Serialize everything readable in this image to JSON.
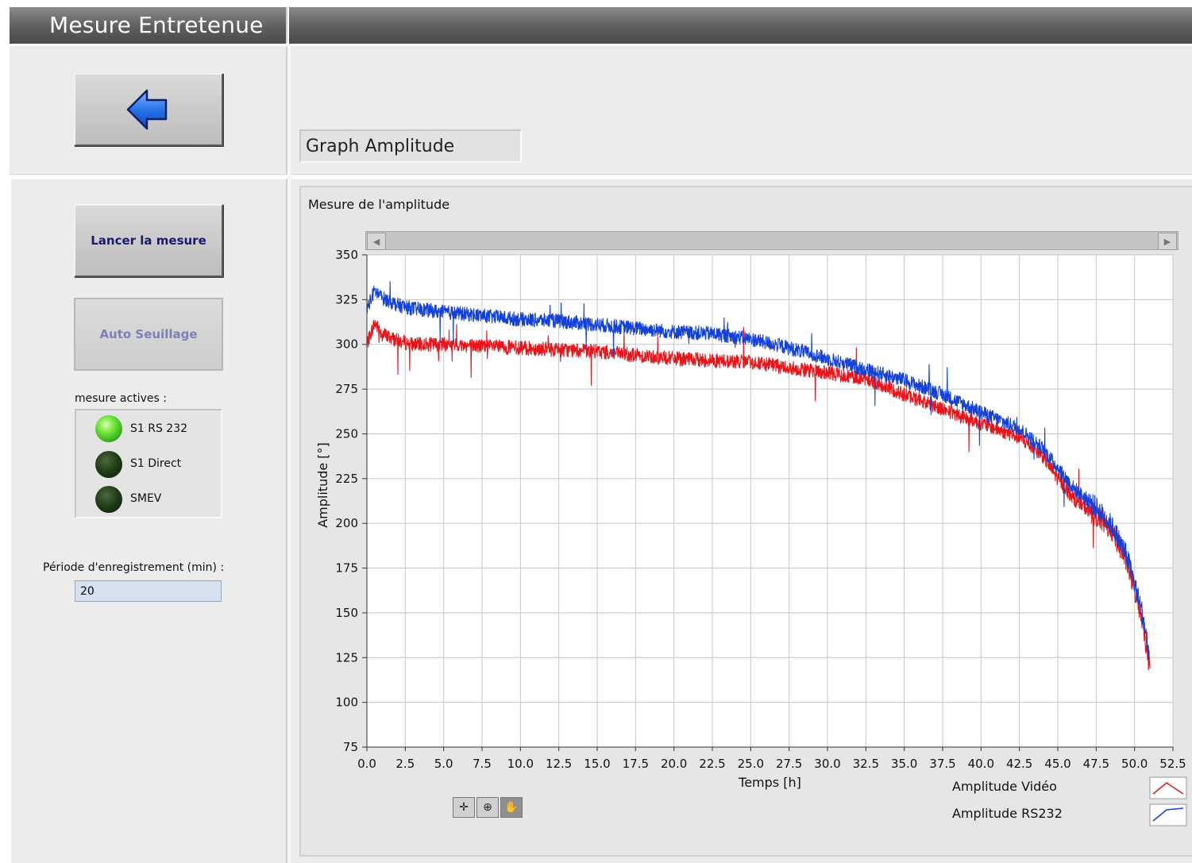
{
  "window": {
    "title": "Mesure Entretenue"
  },
  "toolbar": {
    "back_icon": "arrow-left-icon"
  },
  "buttons": {
    "launch": "Lancer la mesure",
    "auto_threshold": "Auto Seuillage"
  },
  "indicators": {
    "heading": "mesure actives :",
    "items": [
      {
        "label": "S1 RS 232",
        "state": "on"
      },
      {
        "label": "S1 Direct",
        "state": "off"
      },
      {
        "label": "SMEV",
        "state": "off"
      }
    ]
  },
  "period": {
    "label": "Période d'enregistrement (min) :",
    "value": "20"
  },
  "graph_selector": {
    "value": "Graph Amplitude"
  },
  "graph_tools": [
    "crosshair-icon",
    "zoom-icon",
    "pan-hand-icon"
  ],
  "colors": {
    "series_video": "#e8141a",
    "series_rs232": "#1240d8",
    "titlebar": "#5e5e5e"
  },
  "chart_data": {
    "type": "line",
    "title": "Mesure de l'amplitude",
    "xlabel": "Temps [h]",
    "ylabel": "Amplitude [°]",
    "xlim": [
      0,
      52.5
    ],
    "ylim": [
      75,
      350
    ],
    "xticks": [
      "0.0",
      "2.5",
      "5.0",
      "7.5",
      "10.0",
      "12.5",
      "15.0",
      "17.5",
      "20.0",
      "22.5",
      "25.0",
      "27.5",
      "30.0",
      "32.5",
      "35.0",
      "37.5",
      "40.0",
      "42.5",
      "45.0",
      "47.5",
      "50.0",
      "52.5"
    ],
    "yticks": [
      "75",
      "100",
      "125",
      "150",
      "175",
      "200",
      "225",
      "250",
      "275",
      "300",
      "325",
      "350"
    ],
    "grid": true,
    "legend_position": "bottom-right",
    "series": [
      {
        "name": "Amplitude Vidéo",
        "color": "#e8141a",
        "x": [
          0,
          0.5,
          1,
          2,
          3,
          5,
          7.5,
          10,
          12.5,
          15,
          17.5,
          20,
          22.5,
          25,
          27.5,
          30,
          32.5,
          35,
          37.5,
          40,
          42.5,
          44,
          45,
          46,
          47.5,
          48.5,
          49.5,
          50.5,
          51
        ],
        "y": [
          300,
          312,
          306,
          302,
          300,
          300,
          299,
          298,
          297,
          296,
          294,
          292,
          291,
          290,
          287,
          284,
          281,
          272,
          264,
          256,
          248,
          238,
          225,
          214,
          204,
          196,
          178,
          147,
          118
        ]
      },
      {
        "name": "Amplitude RS232",
        "color": "#1240d8",
        "x": [
          0,
          0.5,
          1,
          2,
          3,
          5,
          7.5,
          10,
          12.5,
          15,
          17.5,
          20,
          22.5,
          25,
          27.5,
          30,
          32.5,
          35,
          37.5,
          40,
          42.5,
          44,
          45,
          46,
          47.5,
          48.5,
          49.5,
          50.5,
          51
        ],
        "y": [
          320,
          330,
          326,
          322,
          320,
          318,
          316,
          314,
          313,
          311,
          309,
          307,
          306,
          303,
          298,
          292,
          286,
          280,
          272,
          262,
          253,
          242,
          231,
          220,
          209,
          199,
          182,
          150,
          124
        ]
      }
    ]
  }
}
